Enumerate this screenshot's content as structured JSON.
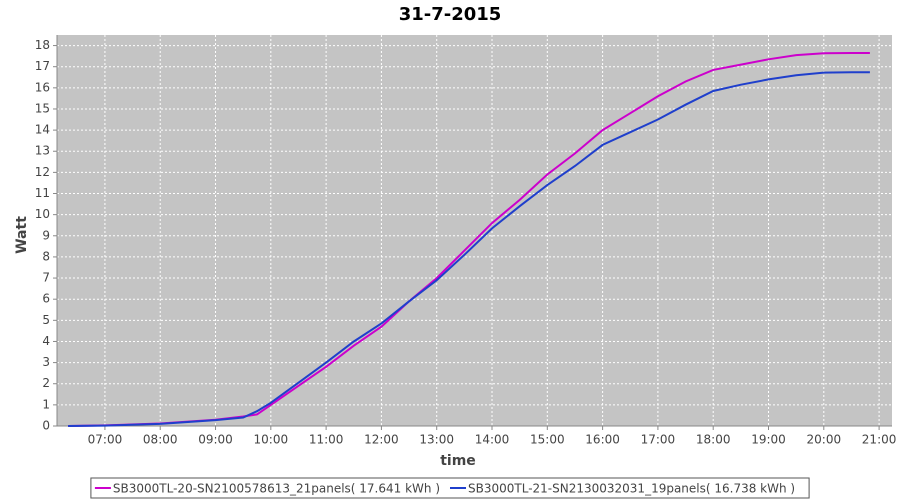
{
  "chart_data": {
    "type": "line",
    "title": "31-7-2015",
    "x_label": "time",
    "y_label": "Watt",
    "x": [
      "06:20",
      "07:00",
      "08:00",
      "09:00",
      "09:30",
      "09:45",
      "10:00",
      "10:30",
      "11:00",
      "11:30",
      "12:00",
      "12:30",
      "13:00",
      "13:30",
      "14:00",
      "14:30",
      "15:00",
      "15:30",
      "16:00",
      "16:30",
      "17:00",
      "17:30",
      "18:00",
      "18:30",
      "19:00",
      "19:30",
      "20:00",
      "20:30",
      "20:50"
    ],
    "series": [
      {
        "name": "SB3000TL-20-SN2100578613_21panels( 17.641 kWh )",
        "color": "#cc00cc",
        "values": [
          0,
          0.03,
          0.12,
          0.3,
          0.45,
          0.55,
          1.0,
          1.9,
          2.8,
          3.8,
          4.7,
          5.9,
          7.0,
          8.3,
          9.6,
          10.7,
          11.9,
          12.9,
          14.0,
          14.8,
          15.6,
          16.3,
          16.85,
          17.1,
          17.35,
          17.55,
          17.64,
          17.65,
          17.65
        ]
      },
      {
        "name": "SB3000TL-21-SN2130032031_19panels( 16.738 kWh )",
        "color": "#1f3fcc",
        "values": [
          0,
          0.02,
          0.1,
          0.28,
          0.4,
          0.7,
          1.1,
          2.05,
          3.0,
          4.0,
          4.85,
          5.9,
          6.9,
          8.1,
          9.35,
          10.4,
          11.4,
          12.3,
          13.3,
          13.9,
          14.5,
          15.2,
          15.85,
          16.15,
          16.4,
          16.6,
          16.72,
          16.74,
          16.74
        ]
      }
    ],
    "xlim": [
      "06:08",
      "21:14"
    ],
    "xticks": [
      "07:00",
      "08:00",
      "09:00",
      "10:00",
      "11:00",
      "12:00",
      "13:00",
      "14:00",
      "15:00",
      "16:00",
      "17:00",
      "18:00",
      "19:00",
      "20:00",
      "21:00"
    ],
    "ylim": [
      0,
      18.5
    ],
    "yticks": [
      0,
      1,
      2,
      3,
      4,
      5,
      6,
      7,
      8,
      9,
      10,
      11,
      12,
      13,
      14,
      15,
      16,
      17,
      18
    ],
    "grid": true,
    "legend": "bottom"
  }
}
